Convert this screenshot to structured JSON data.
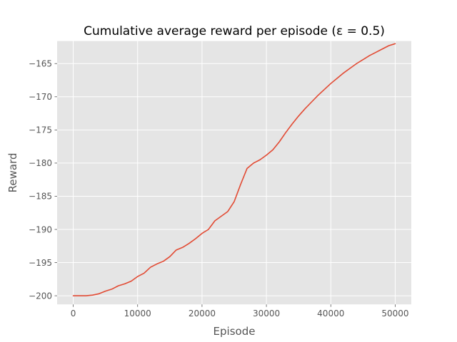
{
  "chart_data": {
    "type": "line",
    "title": "Cumulative average reward per episode (ε = 0.5)",
    "xlabel": "Episode",
    "ylabel": "Reward",
    "xlim": [
      -2500,
      52500
    ],
    "ylim": [
      -201.3,
      -161.6
    ],
    "x_ticks": [
      0,
      10000,
      20000,
      30000,
      40000,
      50000
    ],
    "x_tick_labels": [
      "0",
      "10000",
      "20000",
      "30000",
      "40000",
      "50000"
    ],
    "y_ticks": [
      -200,
      -195,
      -190,
      -185,
      -180,
      -175,
      -170,
      -165
    ],
    "y_tick_labels": [
      "−200",
      "−195",
      "−190",
      "−185",
      "−180",
      "−175",
      "−170",
      "−165"
    ],
    "grid": true,
    "background": "#e5e5e5",
    "grid_color": "#ffffff",
    "series": [
      {
        "color": "#e24a33",
        "x": [
          0,
          1000,
          2000,
          3000,
          4000,
          5000,
          6000,
          7000,
          8000,
          9000,
          10000,
          11000,
          12000,
          13000,
          14000,
          15000,
          16000,
          17000,
          18000,
          19000,
          20000,
          21000,
          22000,
          23000,
          24000,
          25000,
          26000,
          27000,
          27500,
          28000,
          29000,
          30000,
          31000,
          32000,
          33000,
          34000,
          35000,
          36000,
          37000,
          38000,
          39000,
          40000,
          41000,
          42000,
          43000,
          44000,
          45000,
          46000,
          47000,
          48000,
          49000,
          50000
        ],
        "y": [
          -200,
          -200,
          -200,
          -199.9,
          -199.7,
          -199.3,
          -199.0,
          -198.5,
          -198.2,
          -197.8,
          -197.1,
          -196.6,
          -195.7,
          -195.2,
          -194.8,
          -194.1,
          -193.1,
          -192.7,
          -192.1,
          -191.4,
          -190.6,
          -190.0,
          -188.7,
          -188.0,
          -187.3,
          -185.8,
          -183.2,
          -180.8,
          -180.4,
          -180.0,
          -179.5,
          -178.8,
          -178.0,
          -176.8,
          -175.4,
          -174.1,
          -172.9,
          -171.8,
          -170.8,
          -169.8,
          -168.9,
          -168.0,
          -167.2,
          -166.4,
          -165.7,
          -165.0,
          -164.4,
          -163.8,
          -163.3,
          -162.8,
          -162.3,
          -162.0
        ]
      }
    ]
  }
}
